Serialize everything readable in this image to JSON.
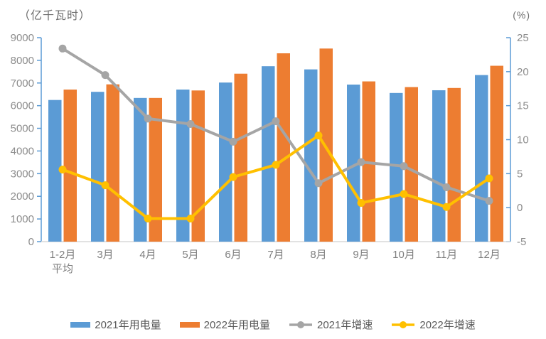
{
  "chart_data": {
    "type": "bar",
    "combo": "clustered-bars-with-two-lines",
    "title": "",
    "categories": [
      "1-2月\n平均",
      "3月",
      "4月",
      "5月",
      "6月",
      "7月",
      "8月",
      "9月",
      "10月",
      "11月",
      "12月"
    ],
    "series": [
      {
        "name": "2021年用电量",
        "type": "bar",
        "axis": "left",
        "color": "#5B9BD5",
        "values": [
          6250,
          6610,
          6340,
          6710,
          7020,
          7740,
          7600,
          6930,
          6560,
          6680,
          7350
        ]
      },
      {
        "name": "2022年用电量",
        "type": "bar",
        "axis": "left",
        "color": "#ED7D31",
        "values": [
          6710,
          6940,
          6340,
          6670,
          7410,
          8310,
          8520,
          7070,
          6820,
          6780,
          7760
        ]
      },
      {
        "name": "2021年增速",
        "type": "line",
        "axis": "right",
        "color": "#A5A5A5",
        "values": [
          23.4,
          19.5,
          13.1,
          12.3,
          9.7,
          12.7,
          3.6,
          6.7,
          6.1,
          3.0,
          1.0
        ]
      },
      {
        "name": "2022年增速",
        "type": "line",
        "axis": "right",
        "color": "#FFC000",
        "values": [
          5.6,
          3.3,
          -1.6,
          -1.6,
          4.5,
          6.3,
          10.6,
          0.7,
          2.0,
          0.1,
          4.3
        ]
      }
    ],
    "left_axis": {
      "unit": "（亿千瓦时）",
      "min": 0,
      "max": 9000,
      "step": 1000,
      "ticks": [
        0,
        1000,
        2000,
        3000,
        4000,
        5000,
        6000,
        7000,
        8000,
        9000
      ]
    },
    "right_axis": {
      "unit": "(%)",
      "min": -5,
      "max": 25,
      "step": 5,
      "ticks": [
        -5,
        0,
        5,
        10,
        15,
        20,
        25
      ]
    },
    "legend_position": "bottom",
    "grid": false,
    "styles": {
      "axis_line_color": "#5B9BD5",
      "baseline_color": "#D9D9D9",
      "tick_label_color": "#8C8C8C",
      "category_label_color": "#7F7F7F",
      "legend_label_color": "#595959",
      "unit_label_color": "#6E6E6E",
      "background": "#FFFFFF"
    }
  }
}
